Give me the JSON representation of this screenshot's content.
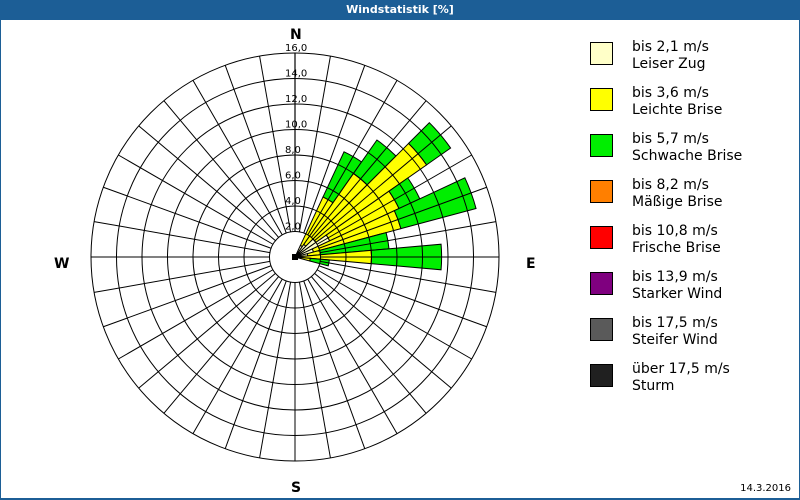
{
  "window": {
    "title": "Windstatistik [%]"
  },
  "footer": {
    "date": "14.3.2016"
  },
  "compass": {
    "n": "N",
    "e": "E",
    "s": "S",
    "w": "W"
  },
  "legend": [
    {
      "range": "bis 2,1 m/s",
      "name": "Leiser Zug",
      "color": "#ffffc8"
    },
    {
      "range": "bis 3,6 m/s",
      "name": "Leichte Brise",
      "color": "#ffff00"
    },
    {
      "range": "bis 5,7 m/s",
      "name": "Schwache Brise",
      "color": "#00ee00"
    },
    {
      "range": "bis 8,2 m/s",
      "name": "Mäßige Brise",
      "color": "#ff7f00"
    },
    {
      "range": "bis 10,8 m/s",
      "name": "Frische Brise",
      "color": "#ff0000"
    },
    {
      "range": "bis 13,9 m/s",
      "name": "Starker Wind",
      "color": "#7f007f"
    },
    {
      "range": "bis 17,5 m/s",
      "name": "Steifer Wind",
      "color": "#5a5a5a"
    },
    {
      "range": "über 17,5 m/s",
      "name": "Sturm",
      "color": "#202020"
    }
  ],
  "chart_data": {
    "type": "wind-rose (stacked polar bar)",
    "title": "Windstatistik [%]",
    "radial_unit": "%",
    "radial_ticks": [
      "2,0",
      "4,0",
      "6,0",
      "8,0",
      "10,0",
      "12,0",
      "14,0",
      "16,0"
    ],
    "rlim": [
      0,
      16
    ],
    "sector_width_deg": 10,
    "direction_labels": [
      "N",
      "E",
      "S",
      "W"
    ],
    "grid": true,
    "legend_position": "right",
    "series_names": [
      "Leiser Zug",
      "Leichte Brise",
      "Schwache Brise",
      "Mäßige Brise",
      "Frische Brise",
      "Starker Wind",
      "Steifer Wind",
      "Sturm"
    ],
    "sectors": [
      {
        "direction_deg": 30,
        "cumulative": [
          1.0,
          5.2,
          9.1
        ]
      },
      {
        "direction_deg": 40,
        "cumulative": [
          1.2,
          8.0,
          11.2
        ]
      },
      {
        "direction_deg": 50,
        "cumulative": [
          2.0,
          12.6,
          14.9
        ]
      },
      {
        "direction_deg": 60,
        "cumulative": [
          3.0,
          9.0,
          10.8
        ]
      },
      {
        "direction_deg": 70,
        "cumulative": [
          1.5,
          8.6,
          14.7
        ]
      },
      {
        "direction_deg": 80,
        "cumulative": [
          1.0,
          2.0,
          7.4
        ]
      },
      {
        "direction_deg": 90,
        "cumulative": [
          0.5,
          6.0,
          11.5
        ]
      },
      {
        "direction_deg": 100,
        "cumulative": [
          0.3,
          1.2,
          2.7
        ]
      }
    ]
  }
}
